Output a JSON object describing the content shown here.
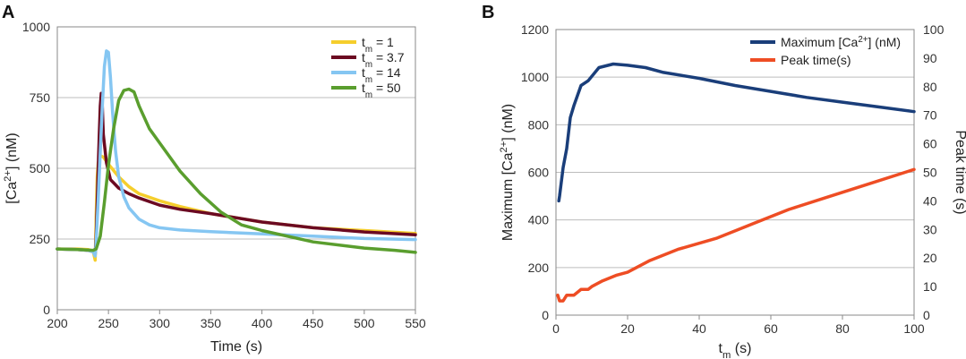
{
  "chart_data": [
    {
      "panel": "A",
      "type": "line",
      "xlabel": "Time (s)",
      "ylabel": "[Ca2+] (nM)",
      "xlim": [
        200,
        550
      ],
      "ylim": [
        0,
        1000
      ],
      "xticks": [
        200,
        250,
        300,
        350,
        400,
        450,
        500,
        550
      ],
      "yticks": [
        0,
        250,
        500,
        750,
        1000
      ],
      "grid": "horizontal",
      "legend_position": "top-right",
      "series": [
        {
          "name": "tm = 1",
          "sub": "m",
          "label_prefix": "t",
          "label_suffix": " = 1",
          "color": "#F5CE2C",
          "x": [
            200,
            220,
            230,
            235,
            237,
            238,
            239,
            240,
            242,
            245,
            250,
            260,
            270,
            280,
            300,
            320,
            350,
            400,
            450,
            500,
            550
          ],
          "y": [
            215,
            215,
            213,
            208,
            175,
            330,
            470,
            520,
            545,
            540,
            515,
            470,
            435,
            410,
            385,
            365,
            340,
            310,
            290,
            280,
            270
          ]
        },
        {
          "name": "tm = 3.7",
          "sub": "m",
          "label_prefix": "t",
          "label_suffix": " = 3.7",
          "color": "#6B0A22",
          "x": [
            200,
            220,
            230,
            235,
            237,
            238,
            239,
            240,
            241,
            242,
            243,
            244,
            245,
            248,
            252,
            260,
            270,
            280,
            300,
            320,
            350,
            400,
            450,
            500,
            550
          ],
          "y": [
            215,
            213,
            210,
            205,
            195,
            260,
            380,
            500,
            620,
            720,
            765,
            720,
            620,
            520,
            460,
            430,
            410,
            395,
            370,
            355,
            340,
            310,
            290,
            275,
            265
          ]
        },
        {
          "name": "tm = 14",
          "sub": "m",
          "label_prefix": "t",
          "label_suffix": " = 14",
          "color": "#85C6F2",
          "x": [
            200,
            220,
            230,
            235,
            237,
            238,
            240,
            242,
            244,
            246,
            248,
            250,
            252,
            254,
            257,
            260,
            265,
            270,
            280,
            290,
            300,
            320,
            350,
            400,
            450,
            500,
            550
          ],
          "y": [
            215,
            213,
            210,
            205,
            190,
            240,
            390,
            560,
            720,
            860,
            915,
            910,
            820,
            700,
            560,
            470,
            400,
            360,
            320,
            300,
            290,
            282,
            276,
            268,
            260,
            252,
            248
          ]
        },
        {
          "name": "tm = 50",
          "sub": "m",
          "label_prefix": "t",
          "label_suffix": " = 50",
          "color": "#5A9E2E",
          "x": [
            200,
            220,
            235,
            238,
            242,
            246,
            250,
            255,
            260,
            265,
            270,
            275,
            280,
            290,
            300,
            320,
            340,
            360,
            380,
            400,
            450,
            500,
            530,
            550
          ],
          "y": [
            215,
            213,
            210,
            215,
            260,
            380,
            510,
            640,
            740,
            775,
            780,
            770,
            720,
            640,
            590,
            490,
            410,
            345,
            300,
            280,
            240,
            218,
            210,
            203
          ]
        }
      ]
    },
    {
      "panel": "B",
      "type": "line",
      "xlabel": "tm (s)",
      "xlabel_main": "t",
      "xlabel_sub": "m",
      "xlabel_rest": " (s)",
      "ylabel_left": "Maximum [Ca2+] (nM)",
      "ylabel_right": "Peak time (s)",
      "xlim": [
        0,
        100
      ],
      "ylim_left": [
        0,
        1200
      ],
      "ylim_right": [
        0,
        100
      ],
      "xticks": [
        0,
        20,
        40,
        60,
        80,
        100
      ],
      "yticks_left": [
        0,
        200,
        400,
        600,
        800,
        1000,
        1200
      ],
      "yticks_right": [
        0,
        10,
        20,
        30,
        40,
        50,
        60,
        70,
        80,
        90,
        100
      ],
      "grid": "horizontal",
      "legend_position": "top-right",
      "series": [
        {
          "name": "Maximum [Ca2+] (nM)",
          "axis": "left",
          "color": "#1A3E7A",
          "x": [
            0.8,
            1,
            2,
            3,
            4,
            5,
            7,
            9,
            12,
            16,
            20,
            25,
            30,
            40,
            50,
            60,
            70,
            80,
            90,
            100
          ],
          "y": [
            480,
            500,
            620,
            700,
            830,
            880,
            965,
            985,
            1040,
            1055,
            1050,
            1040,
            1020,
            995,
            965,
            940,
            915,
            895,
            875,
            855
          ]
        },
        {
          "name": "Peak time(s)",
          "axis": "right",
          "color": "#EE4D24",
          "x": [
            0.5,
            1,
            2,
            3,
            5,
            7,
            9,
            10,
            13,
            17,
            20,
            26,
            34,
            45,
            55,
            65,
            75,
            85,
            100
          ],
          "y": [
            7,
            5,
            5,
            7,
            7,
            9,
            9,
            10,
            12,
            14,
            15,
            19,
            23,
            27,
            32,
            37,
            41,
            45,
            51
          ]
        }
      ]
    }
  ],
  "panel_labels": {
    "a": "A",
    "b": "B"
  }
}
